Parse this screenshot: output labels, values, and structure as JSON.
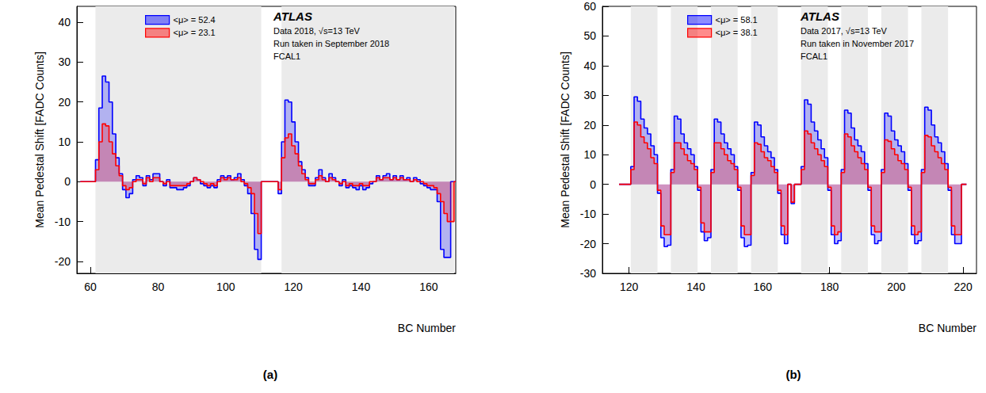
{
  "chart_data": [
    {
      "type": "line",
      "line_style": "step",
      "title": "(a)",
      "x_label": "BC Number",
      "y_label": "Mean Pedestal Shift [FADC Counts]",
      "annotations": [
        "ATLAS",
        "Data 2018, √s=13 TeV",
        "Run taken in September 2018",
        "FCAL1"
      ],
      "legend": "upper left",
      "grid": false,
      "xlim": [
        56,
        168
      ],
      "xticks": [
        60,
        80,
        100,
        120,
        140,
        160
      ],
      "ylim": [
        -23,
        44
      ],
      "yticks": [
        -20,
        -10,
        0,
        10,
        20,
        30,
        40
      ],
      "bunch_trains": [
        [
          61.5,
          110.5
        ],
        [
          116.5,
          167.5
        ]
      ],
      "x": [
        57,
        58,
        59,
        60,
        61,
        62,
        63,
        64,
        65,
        66,
        67,
        68,
        69,
        70,
        71,
        72,
        73,
        74,
        75,
        76,
        77,
        78,
        79,
        80,
        81,
        82,
        83,
        84,
        85,
        86,
        87,
        88,
        89,
        90,
        91,
        92,
        93,
        94,
        95,
        96,
        97,
        98,
        99,
        100,
        101,
        102,
        103,
        104,
        105,
        106,
        107,
        108,
        109,
        110,
        111,
        112,
        113,
        114,
        115,
        116,
        117,
        118,
        119,
        120,
        121,
        122,
        123,
        124,
        125,
        126,
        127,
        128,
        129,
        130,
        131,
        132,
        133,
        134,
        135,
        136,
        137,
        138,
        139,
        140,
        141,
        142,
        143,
        144,
        145,
        146,
        147,
        148,
        149,
        150,
        151,
        152,
        153,
        154,
        155,
        156,
        157,
        158,
        159,
        160,
        161,
        162,
        163,
        164,
        165,
        166,
        167,
        168
      ],
      "series": [
        {
          "name": "<μ> = 52.4",
          "color": "#0000ff",
          "values": [
            0,
            0,
            0,
            0,
            0,
            5.5,
            18.5,
            26.5,
            25,
            20,
            12,
            6,
            2,
            -2,
            -4,
            -3,
            0.5,
            1.5,
            1,
            -1,
            1.5,
            0.5,
            2,
            2,
            0,
            -1,
            0.5,
            -1.5,
            -1.5,
            -2,
            -2,
            -1.5,
            -1,
            0,
            1,
            0.5,
            -0.5,
            -1,
            -1.5,
            -1,
            -1.5,
            0.5,
            1.5,
            1,
            1.5,
            0.5,
            1,
            2,
            0.5,
            -1,
            -3,
            -8,
            -17,
            -19.5,
            0,
            0,
            0,
            0,
            0,
            -3,
            10,
            20.5,
            20,
            15,
            10,
            5,
            3,
            1,
            -1,
            -1,
            1,
            3,
            1,
            0,
            2,
            1,
            0,
            -1,
            0.5,
            -1.5,
            -1,
            -1.5,
            -2,
            -1,
            -2,
            -1.5,
            -0.5,
            0,
            1.5,
            0.5,
            1.5,
            2,
            0.5,
            1.5,
            0.5,
            1.5,
            0.5,
            1,
            0,
            1,
            0.5,
            -0.5,
            -1,
            -1.5,
            -2,
            -2,
            -5,
            -17,
            -19,
            -19,
            0,
            0
          ]
        },
        {
          "name": "<μ> = 23.1",
          "color": "#ff0000",
          "values": [
            0,
            0,
            0,
            0,
            0,
            3,
            10,
            14.5,
            14,
            10,
            7,
            4,
            1.5,
            -1,
            -2,
            -1.5,
            0,
            0.5,
            0.5,
            -0.5,
            1,
            0,
            1,
            1,
            0,
            -0.5,
            0,
            -1,
            -1,
            -1,
            -1,
            -1,
            -0.5,
            0,
            1,
            0.5,
            0,
            -0.5,
            -1,
            -0.5,
            -1,
            0,
            1,
            0.5,
            1,
            0.5,
            0.5,
            1,
            0,
            -0.5,
            -1.5,
            -3,
            -8,
            -13,
            0,
            0,
            0,
            0,
            0,
            -2,
            6,
            11,
            12,
            9,
            7,
            4,
            2,
            0.5,
            -0.5,
            -0.5,
            0.5,
            1.5,
            0.5,
            0,
            1,
            0.5,
            0,
            -0.5,
            0,
            -1,
            -0.5,
            -1,
            -1,
            -0.5,
            -1,
            -1,
            0,
            0,
            1,
            0.5,
            1,
            1,
            0.5,
            1,
            0.5,
            1,
            0.5,
            0.5,
            0,
            0.5,
            0,
            0,
            -0.5,
            -1,
            -1,
            -1.5,
            -3,
            -5,
            -8,
            -10,
            -10,
            0
          ]
        }
      ]
    },
    {
      "type": "line",
      "line_style": "step",
      "title": "(b)",
      "x_label": "BC Number",
      "y_label": "Mean Pedestal Shift [FADC Counts]",
      "annotations": [
        "ATLAS",
        "Data 2017, √s=13 TeV",
        "Run taken in November 2017",
        "FCAL1"
      ],
      "legend": "upper left",
      "grid": false,
      "xlim": [
        112,
        224
      ],
      "xticks": [
        120,
        140,
        160,
        180,
        200,
        220
      ],
      "ylim": [
        -30,
        60
      ],
      "yticks": [
        -30,
        -20,
        -10,
        0,
        10,
        20,
        30,
        40,
        50,
        60
      ],
      "bunch_trains": [
        [
          120.5,
          128.5
        ],
        [
          132.5,
          140.5
        ],
        [
          144.5,
          152.5
        ],
        [
          156.5,
          164.5
        ],
        [
          171.5,
          179.5
        ],
        [
          183.5,
          191.5
        ],
        [
          195.5,
          203.5
        ],
        [
          207.5,
          215.5
        ]
      ],
      "x": [
        117,
        118,
        119,
        120,
        121,
        122,
        123,
        124,
        125,
        126,
        127,
        128,
        129,
        130,
        131,
        132,
        133,
        134,
        135,
        136,
        137,
        138,
        139,
        140,
        141,
        142,
        143,
        144,
        145,
        146,
        147,
        148,
        149,
        150,
        151,
        152,
        153,
        154,
        155,
        156,
        157,
        158,
        159,
        160,
        161,
        162,
        163,
        164,
        165,
        166,
        167,
        168,
        169,
        170,
        171,
        172,
        173,
        174,
        175,
        176,
        177,
        178,
        179,
        180,
        181,
        182,
        183,
        184,
        185,
        186,
        187,
        188,
        189,
        190,
        191,
        192,
        193,
        194,
        195,
        196,
        197,
        198,
        199,
        200,
        201,
        202,
        203,
        204,
        205,
        206,
        207,
        208,
        209,
        210,
        211,
        212,
        213,
        214,
        215,
        216,
        217,
        218,
        219,
        220,
        221
      ],
      "series": [
        {
          "name": "<μ> = 58.1",
          "color": "#0000ff",
          "values": [
            0,
            0,
            0,
            0,
            6,
            29.5,
            28,
            22,
            19,
            17,
            13,
            10,
            -3,
            -18,
            -21,
            -20.5,
            5,
            23,
            22,
            17,
            14,
            12,
            10,
            6,
            -2,
            -16,
            -19,
            -18,
            5,
            22,
            21,
            17,
            14,
            12,
            10,
            6,
            -2,
            -18,
            -21,
            -20.5,
            4,
            21,
            20,
            16,
            13,
            11,
            9,
            5,
            -3,
            -17,
            -20,
            0,
            -6.5,
            0,
            0,
            6,
            28.5,
            27,
            21,
            18,
            15,
            12,
            9,
            -2,
            -17,
            -20,
            -19,
            5,
            25,
            24,
            19,
            15,
            13,
            11,
            7,
            -2,
            -17,
            -20,
            -19,
            5,
            24,
            23,
            18,
            15,
            13,
            11,
            7,
            -2,
            -17,
            -20,
            -19,
            5,
            26,
            25,
            20,
            16,
            14,
            11,
            7,
            -2,
            -17,
            -20,
            -20,
            0,
            0
          ]
        },
        {
          "name": "<μ> = 38.1",
          "color": "#ff0000",
          "values": [
            0,
            0,
            0,
            0,
            5,
            21,
            20,
            16,
            14,
            12,
            9,
            7,
            -2,
            -14,
            -17,
            -17,
            4,
            14,
            14,
            12,
            10,
            8,
            7,
            5,
            -1,
            -13,
            -16,
            -16,
            4,
            14,
            14,
            12,
            10,
            8,
            7,
            5,
            -1,
            -14,
            -17,
            -17,
            3,
            14,
            13.5,
            11,
            9,
            8,
            6,
            4,
            -2,
            -14,
            -17,
            0,
            -6,
            0,
            0,
            5,
            18,
            17,
            14,
            12,
            10,
            8,
            6,
            -1,
            -14,
            -17,
            -16,
            4,
            17,
            16,
            13,
            11,
            9,
            7,
            5,
            -1,
            -14,
            -16,
            -16,
            4,
            15,
            14.5,
            12,
            10,
            8,
            7,
            5,
            -1,
            -14,
            -17,
            -16,
            4,
            16.5,
            16,
            13,
            11,
            9,
            7,
            5,
            -1,
            -14,
            -17,
            -17,
            0,
            0
          ]
        }
      ]
    }
  ]
}
